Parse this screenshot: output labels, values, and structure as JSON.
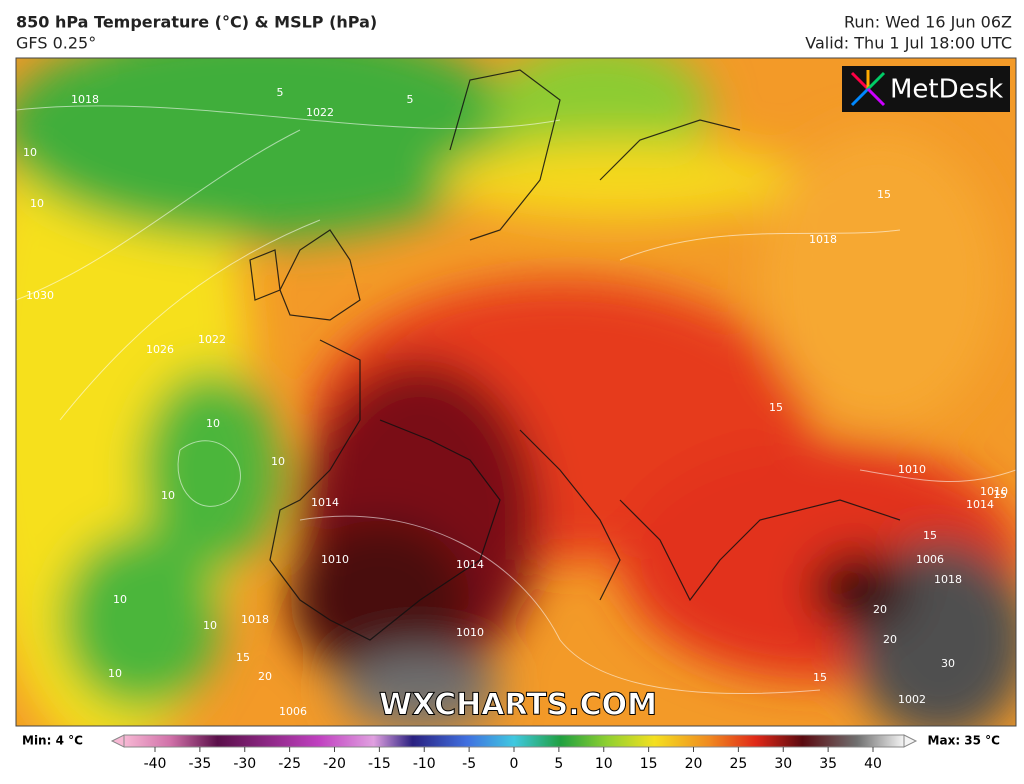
{
  "header": {
    "title": "850 hPa Temperature (°C) & MSLP (hPa)",
    "subtitle": "GFS 0.25°",
    "run": "Run: Wed 16 Jun 06Z",
    "valid": "Valid: Thu 1 Jul 18:00 UTC"
  },
  "logo": "MetDesk",
  "watermark": "WXCHARTS.COM",
  "colorbar": {
    "min_label": "Min: 4 °C",
    "max_label": "Max: 35 °C",
    "ticks": [
      -40,
      -35,
      -30,
      -25,
      -20,
      -15,
      -10,
      -5,
      0,
      5,
      10,
      15,
      20,
      25,
      30,
      35,
      40
    ]
  },
  "map_labels": [
    "1018",
    "5",
    "1022",
    "5",
    "10",
    "10",
    "1030",
    "1026",
    "1022",
    "10",
    "10",
    "10",
    "10",
    "10",
    "10",
    "1014",
    "1010",
    "1014",
    "1018",
    "15",
    "20",
    "1010",
    "1006",
    "1018",
    "15",
    "15",
    "1018",
    "15",
    "1014",
    "15",
    "1010",
    "1010",
    "1006",
    "15",
    "20",
    "1002",
    "20",
    "30"
  ]
}
